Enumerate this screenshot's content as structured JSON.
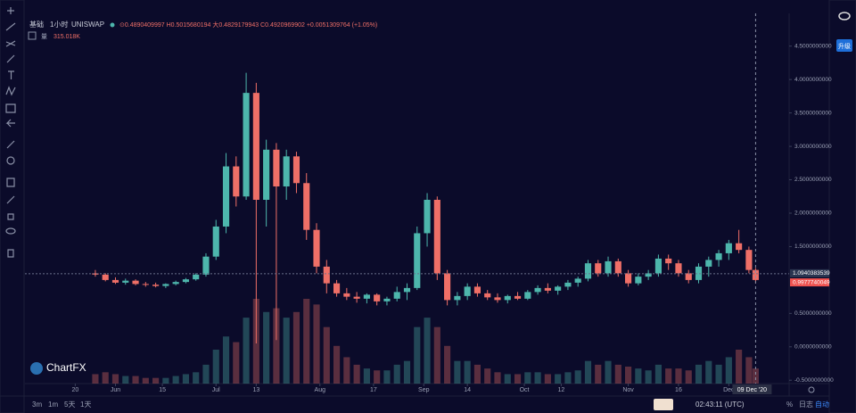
{
  "header": {
    "market": "基础",
    "interval": "1小时",
    "symbol": "UNISWAP",
    "ohlc": "⊙0.4890409997 H0.5015680194 大0.4829179943 C0.4920969902 +0.0051309764 (+1.05%)",
    "volume_label": "量",
    "volume": "315.018K"
  },
  "toolbar": {
    "upgrade": "升级"
  },
  "footer": {
    "ranges": [
      "3m",
      "1m",
      "5天",
      "1天"
    ],
    "time": "02:43:11 (UTC)",
    "percent": "%",
    "log": "日志",
    "auto": "自动"
  },
  "logo": "ChartFX",
  "chart_data": {
    "type": "candlestick",
    "x": [
      "2020-05-26",
      "2020-05-29",
      "2020-06-01",
      "2020-06-04",
      "2020-06-07",
      "2020-06-10",
      "2020-06-13",
      "2020-06-16",
      "2020-06-19",
      "2020-06-22",
      "2020-06-25",
      "2020-06-28",
      "2020-07-01",
      "2020-07-04",
      "2020-07-07",
      "2020-07-10",
      "2020-07-13",
      "2020-07-16",
      "2020-07-19",
      "2020-07-22",
      "2020-07-25",
      "2020-07-28",
      "2020-07-31",
      "2020-08-03",
      "2020-08-06",
      "2020-08-09",
      "2020-08-12",
      "2020-08-15",
      "2020-08-18",
      "2020-08-21",
      "2020-08-24",
      "2020-08-27",
      "2020-08-30",
      "2020-09-02",
      "2020-09-05",
      "2020-09-08",
      "2020-09-11",
      "2020-09-14",
      "2020-09-17",
      "2020-09-20",
      "2020-09-23",
      "2020-09-26",
      "2020-09-29",
      "2020-10-02",
      "2020-10-05",
      "2020-10-08",
      "2020-10-11",
      "2020-10-14",
      "2020-10-17",
      "2020-10-20",
      "2020-10-23",
      "2020-10-26",
      "2020-10-29",
      "2020-11-01",
      "2020-11-04",
      "2020-11-07",
      "2020-11-10",
      "2020-11-13",
      "2020-11-16",
      "2020-11-19",
      "2020-11-22",
      "2020-11-25",
      "2020-11-28",
      "2020-12-01",
      "2020-12-04",
      "2020-12-07",
      "2020-12-09"
    ],
    "open": [
      1.1,
      1.08,
      1.0,
      0.96,
      0.99,
      0.94,
      0.93,
      0.91,
      0.94,
      0.97,
      1.01,
      1.08,
      1.35,
      1.8,
      2.7,
      2.25,
      3.8,
      2.2,
      2.95,
      2.4,
      2.85,
      2.45,
      1.75,
      1.2,
      0.95,
      0.8,
      0.75,
      0.72,
      0.78,
      0.68,
      0.72,
      0.82,
      0.88,
      1.7,
      2.2,
      1.1,
      0.7,
      0.76,
      0.9,
      0.8,
      0.74,
      0.7,
      0.76,
      0.72,
      0.82,
      0.88,
      0.84,
      0.9,
      0.96,
      1.02,
      1.25,
      1.1,
      1.28,
      1.1,
      0.95,
      1.05,
      1.1,
      1.32,
      1.25,
      1.1,
      1.0,
      1.2,
      1.3,
      1.4,
      1.55,
      1.45,
      1.15
    ],
    "high": [
      1.15,
      1.1,
      1.04,
      1.02,
      1.01,
      0.97,
      0.96,
      0.95,
      0.99,
      1.03,
      1.1,
      1.4,
      1.9,
      2.9,
      2.85,
      4.1,
      3.95,
      3.1,
      3.05,
      2.95,
      2.92,
      2.6,
      1.85,
      1.3,
      1.0,
      0.88,
      0.82,
      0.8,
      0.8,
      0.75,
      0.9,
      0.95,
      1.8,
      2.3,
      2.25,
      1.15,
      0.82,
      0.95,
      0.95,
      0.85,
      0.8,
      0.78,
      0.82,
      0.85,
      0.92,
      0.95,
      0.92,
      1.0,
      1.05,
      1.3,
      1.3,
      1.35,
      1.32,
      1.15,
      1.1,
      1.15,
      1.38,
      1.38,
      1.3,
      1.15,
      1.25,
      1.35,
      1.45,
      1.6,
      1.75,
      1.5,
      1.18
    ],
    "low": [
      1.05,
      0.98,
      0.94,
      0.93,
      0.92,
      0.9,
      0.89,
      0.88,
      0.92,
      0.95,
      0.99,
      1.05,
      1.3,
      1.7,
      2.1,
      2.2,
      0.05,
      1.8,
      0.1,
      2.2,
      2.3,
      1.6,
      1.1,
      0.8,
      0.75,
      0.7,
      0.66,
      0.65,
      0.62,
      0.62,
      0.68,
      0.7,
      0.85,
      1.5,
      1.0,
      0.62,
      0.62,
      0.7,
      0.75,
      0.7,
      0.66,
      0.65,
      0.7,
      0.7,
      0.78,
      0.8,
      0.78,
      0.85,
      0.9,
      0.98,
      1.05,
      1.05,
      1.05,
      0.9,
      0.92,
      1.0,
      1.05,
      1.15,
      1.05,
      0.95,
      0.95,
      1.05,
      1.2,
      1.3,
      1.4,
      1.1,
      0.95
    ],
    "close": [
      1.08,
      1.0,
      0.96,
      0.99,
      0.94,
      0.93,
      0.91,
      0.94,
      0.97,
      1.01,
      1.08,
      1.35,
      1.8,
      2.7,
      2.25,
      3.8,
      2.2,
      2.95,
      2.4,
      2.85,
      2.45,
      1.75,
      1.2,
      0.95,
      0.8,
      0.75,
      0.72,
      0.78,
      0.68,
      0.72,
      0.82,
      0.88,
      1.7,
      2.2,
      1.1,
      0.7,
      0.76,
      0.9,
      0.8,
      0.74,
      0.7,
      0.76,
      0.72,
      0.82,
      0.88,
      0.84,
      0.9,
      0.96,
      1.02,
      1.25,
      1.1,
      1.28,
      1.1,
      0.95,
      1.05,
      1.1,
      1.32,
      1.25,
      1.1,
      1.0,
      1.2,
      1.3,
      1.4,
      1.55,
      1.45,
      1.15,
      1.0
    ],
    "volume": [
      5,
      6,
      5,
      4,
      4,
      3,
      3,
      3,
      4,
      5,
      6,
      10,
      18,
      25,
      22,
      35,
      45,
      38,
      40,
      35,
      38,
      45,
      42,
      30,
      20,
      14,
      10,
      8,
      7,
      7,
      10,
      12,
      30,
      35,
      30,
      20,
      12,
      12,
      10,
      8,
      6,
      5,
      5,
      6,
      6,
      5,
      5,
      6,
      7,
      12,
      10,
      12,
      10,
      9,
      8,
      7,
      10,
      8,
      8,
      7,
      10,
      12,
      10,
      14,
      18,
      14,
      8
    ],
    "up_color": "#4db6ac",
    "down_color": "#ef6f67",
    "xlim": [
      "2020-05-05",
      "2020-12-19"
    ],
    "xticks": [
      {
        "value": "2020-05-20",
        "label": "20"
      },
      {
        "value": "2020-06-01",
        "label": "Jun"
      },
      {
        "value": "2020-06-15",
        "label": "15"
      },
      {
        "value": "2020-07-01",
        "label": "Jul"
      },
      {
        "value": "2020-07-13",
        "label": "13"
      },
      {
        "value": "2020-08-01",
        "label": "Aug"
      },
      {
        "value": "2020-08-17",
        "label": "17"
      },
      {
        "value": "2020-09-01",
        "label": "Sep"
      },
      {
        "value": "2020-09-14",
        "label": "14"
      },
      {
        "value": "2020-10-01",
        "label": "Oct"
      },
      {
        "value": "2020-10-12",
        "label": "12"
      },
      {
        "value": "2020-11-01",
        "label": "Nov"
      },
      {
        "value": "2020-11-16",
        "label": "16"
      },
      {
        "value": "2020-12-01",
        "label": "Dec"
      }
    ],
    "ylim": [
      -0.55,
      4.99
    ],
    "yticks": [
      {
        "value": 4.5,
        "label": "4.5000000000"
      },
      {
        "value": 4,
        "label": "4.0000000000"
      },
      {
        "value": 3.5,
        "label": "3.5000000000"
      },
      {
        "value": 3,
        "label": "3.0000000000"
      },
      {
        "value": 2.5,
        "label": "2.5000000000"
      },
      {
        "value": 2,
        "label": "2.0000000000"
      },
      {
        "value": 1.5,
        "label": "1.5000000000"
      },
      {
        "value": 0.5,
        "label": "0.5000000000"
      },
      {
        "value": 0,
        "label": "0.0000000000"
      },
      {
        "value": -0.5,
        "label": "-0.5000000000"
      }
    ],
    "price_lines": [
      {
        "value": 1.0940383539,
        "color": "#2a3550"
      },
      {
        "value": 0.9977740049,
        "color": "#ef5350"
      }
    ],
    "crosshair": {
      "x": "2020-12-09",
      "label": "09 Dec '20"
    }
  }
}
